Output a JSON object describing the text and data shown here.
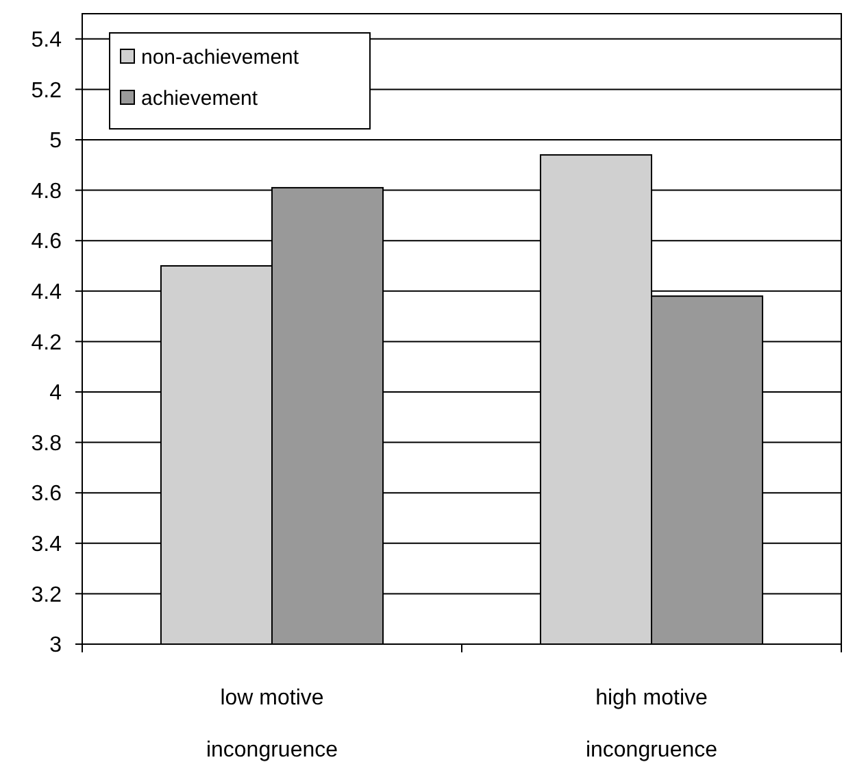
{
  "chart_data": {
    "type": "bar",
    "categories": [
      "low motive incongruence",
      "high motive incongruence"
    ],
    "series": [
      {
        "name": "non-achievement",
        "color": "#d0d0d0",
        "values": [
          4.5,
          4.94
        ]
      },
      {
        "name": "achievement",
        "color": "#999999",
        "values": [
          4.81,
          4.38
        ]
      }
    ],
    "ylim": [
      3,
      5.5
    ],
    "yticks": [
      3,
      3.2,
      3.4,
      3.6,
      3.8,
      4,
      4.2,
      4.4,
      4.6,
      4.8,
      5,
      5.2,
      5.4
    ],
    "grid": "y",
    "legend": "top left"
  }
}
